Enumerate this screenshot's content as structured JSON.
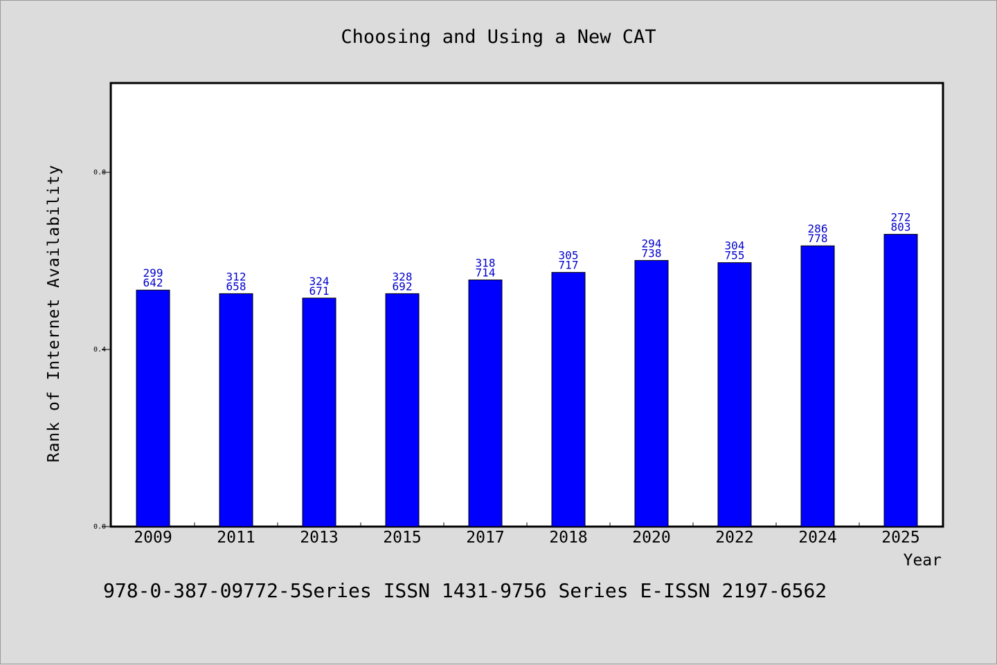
{
  "chart_data": {
    "type": "bar",
    "title": "Choosing and Using a New CAT",
    "xlabel": "Year",
    "ylabel": "Rank of Internet Availability",
    "categories": [
      "2009",
      "2011",
      "2013",
      "2015",
      "2017",
      "2018",
      "2020",
      "2022",
      "2024",
      "2025"
    ],
    "values": [
      0.534,
      0.526,
      0.516,
      0.526,
      0.557,
      0.574,
      0.601,
      0.596,
      0.634,
      0.66
    ],
    "data_labels": [
      [
        "299",
        "642"
      ],
      [
        "312",
        "658"
      ],
      [
        "324",
        "671"
      ],
      [
        "328",
        "692"
      ],
      [
        "318",
        "714"
      ],
      [
        "305",
        "717"
      ],
      [
        "294",
        "738"
      ],
      [
        "304",
        "755"
      ],
      [
        "286",
        "778"
      ],
      [
        "272",
        "803"
      ]
    ],
    "yticks": [
      "0.0",
      "0.4",
      "0.8"
    ],
    "ytick_values": [
      0.0,
      0.4,
      0.8
    ],
    "ylim": [
      0,
      1.0
    ],
    "grid": false,
    "bar_color": "#0000ff",
    "label_color": "#0000cc"
  },
  "footer": "978-0-387-09772-5Series ISSN 1431-9756 Series E-ISSN 2197-6562"
}
